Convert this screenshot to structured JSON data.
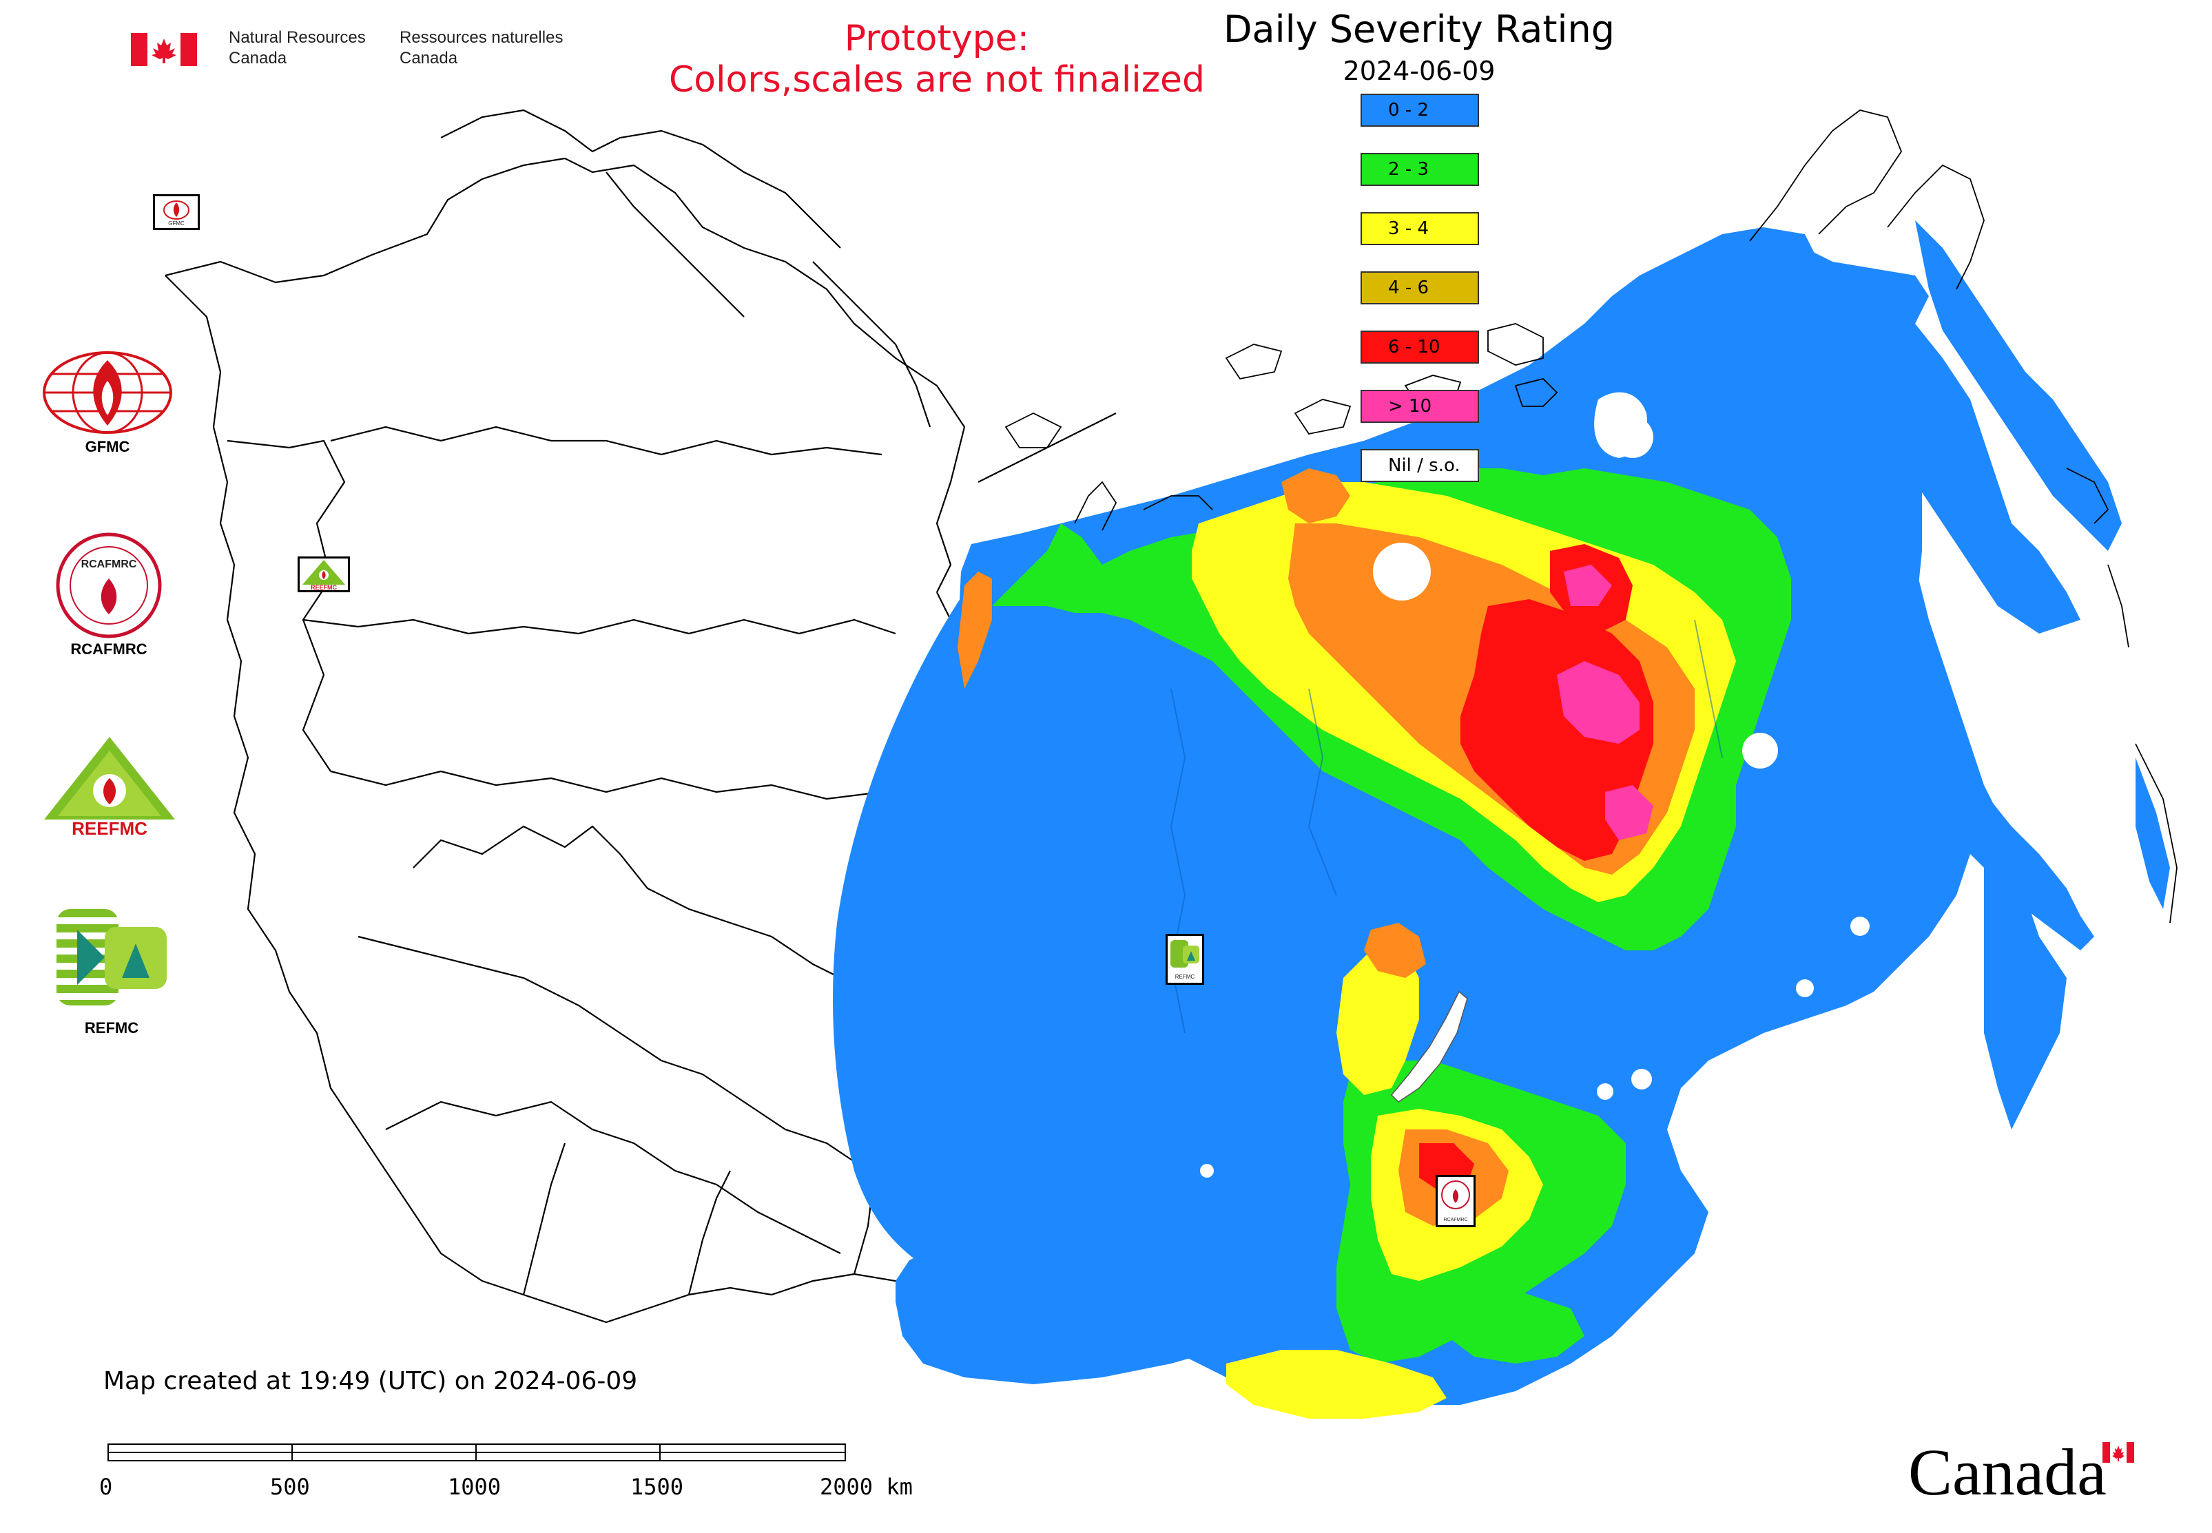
{
  "header": {
    "nrcan_en_line1": "Natural Resources",
    "nrcan_en_line2": "Canada",
    "nrcan_fr_line1": "Ressources naturelles",
    "nrcan_fr_line2": "Canada",
    "prototype_line1": "Prototype:",
    "prototype_line2": "Colors,scales are not finalized",
    "title": "Daily Severity Rating",
    "date": "2024-06-09"
  },
  "legend": {
    "items": [
      {
        "label": "0 - 2",
        "color": "#1e88ff"
      },
      {
        "label": "2 - 3",
        "color": "#1ee81e"
      },
      {
        "label": "3 - 4",
        "color": "#ffff1e"
      },
      {
        "label": "4 - 6",
        "color": "#d9b800"
      },
      {
        "label": "6 - 10",
        "color": "#ff1010"
      },
      {
        "label": "> 10",
        "color": "#ff3ca8"
      },
      {
        "label": "Nil / s.o.",
        "color": "#ffffff"
      }
    ]
  },
  "logos": {
    "gfmc": "GFMC",
    "rcafmrc": "RCAFMRC",
    "reefmc": "REEFMC",
    "refmc": "REFMC",
    "reefmc_text": "REEFMC"
  },
  "map_markers": {
    "gfmc_marker": "GFMC",
    "reefmc_marker": "REEFMC",
    "refmc_marker": "REFMC",
    "rcafmrc_marker": "RCAFMRC"
  },
  "footer": {
    "created": "Map created at 19:49 (UTC) on 2024-06-09",
    "scale_labels": [
      "0",
      "500",
      "1000",
      "1500",
      "2000 km"
    ],
    "wordmark": "Canada"
  },
  "colors": {
    "background": "#ffffff",
    "prototype_text": "#e8102a",
    "flag_red": "#e8102a"
  }
}
